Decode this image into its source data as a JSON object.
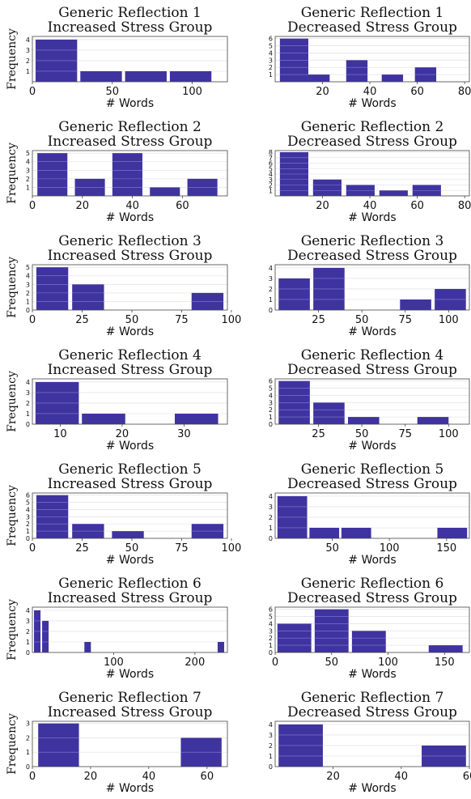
{
  "chart_data": [
    {
      "type": "bar",
      "title": "Generic Reflection 1\nIncreased Stress Group",
      "xlabel": "# Words",
      "ylabel": "Frequency",
      "xlim": [
        0,
        122
      ],
      "ylim": [
        0,
        4.3
      ],
      "xticks": [
        0,
        50,
        100
      ],
      "yticks": [
        1,
        2,
        3,
        4
      ],
      "bars": [
        {
          "x0": 2,
          "x1": 28,
          "value": 4
        },
        {
          "x0": 30,
          "x1": 56,
          "value": 1
        },
        {
          "x0": 58,
          "x1": 84,
          "value": 1
        },
        {
          "x0": 86,
          "x1": 112,
          "value": 1
        }
      ],
      "grid": true
    },
    {
      "type": "bar",
      "title": "Generic Reflection 1\nDecreased Stress Group",
      "xlabel": "# Words",
      "ylabel": "",
      "xlim": [
        0,
        82
      ],
      "ylim": [
        0,
        6.3
      ],
      "xticks": [
        20,
        40,
        60,
        80
      ],
      "yticks": [
        1,
        2,
        3,
        4,
        5,
        6
      ],
      "bars": [
        {
          "x0": 2,
          "x1": 14,
          "value": 6
        },
        {
          "x0": 14,
          "x1": 23,
          "value": 1
        },
        {
          "x0": 30,
          "x1": 39,
          "value": 3
        },
        {
          "x0": 45,
          "x1": 54,
          "value": 1
        },
        {
          "x0": 59,
          "x1": 68,
          "value": 2
        }
      ],
      "grid": true
    },
    {
      "type": "bar",
      "title": "Generic Reflection 2\nIncreased Stress Group",
      "xlabel": "# Words",
      "ylabel": "Frequency",
      "xlim": [
        0,
        78
      ],
      "ylim": [
        0,
        5.3
      ],
      "xticks": [
        0,
        20,
        40,
        60
      ],
      "yticks": [
        1,
        2,
        3,
        4,
        5
      ],
      "bars": [
        {
          "x0": 2,
          "x1": 14,
          "value": 5
        },
        {
          "x0": 17,
          "x1": 29,
          "value": 2
        },
        {
          "x0": 32,
          "x1": 44,
          "value": 5
        },
        {
          "x0": 47,
          "x1": 59,
          "value": 1
        },
        {
          "x0": 62,
          "x1": 74,
          "value": 2
        }
      ],
      "grid": true
    },
    {
      "type": "bar",
      "title": "Generic Reflection 2\nDecreased Stress Group",
      "xlabel": "# Words",
      "ylabel": "",
      "xlim": [
        0,
        82
      ],
      "ylim": [
        0,
        8.3
      ],
      "xticks": [
        20,
        40,
        60,
        80
      ],
      "yticks": [
        1,
        2,
        3,
        4,
        5,
        6,
        7,
        8
      ],
      "bars": [
        {
          "x0": 2,
          "x1": 14,
          "value": 8
        },
        {
          "x0": 16,
          "x1": 28,
          "value": 3
        },
        {
          "x0": 30,
          "x1": 42,
          "value": 2
        },
        {
          "x0": 44,
          "x1": 56,
          "value": 1
        },
        {
          "x0": 58,
          "x1": 70,
          "value": 2
        }
      ],
      "grid": true
    },
    {
      "type": "bar",
      "title": "Generic Reflection 3\nIncreased Stress Group",
      "xlabel": "# Words",
      "ylabel": "Frequency",
      "xlim": [
        0,
        98
      ],
      "ylim": [
        0,
        5.3
      ],
      "xticks": [
        0,
        25,
        50,
        75,
        100
      ],
      "yticks": [
        0,
        1,
        2,
        3,
        4,
        5
      ],
      "bars": [
        {
          "x0": 2,
          "x1": 18,
          "value": 5
        },
        {
          "x0": 20,
          "x1": 36,
          "value": 3
        },
        {
          "x0": 80,
          "x1": 96,
          "value": 2
        }
      ],
      "grid": true
    },
    {
      "type": "bar",
      "title": "Generic Reflection 3\nDecreased Stress Group",
      "xlabel": "# Words",
      "ylabel": "",
      "xlim": [
        0,
        112
      ],
      "ylim": [
        0,
        4.3
      ],
      "xticks": [
        25,
        50,
        75,
        100
      ],
      "yticks": [
        0,
        1,
        2,
        3,
        4
      ],
      "bars": [
        {
          "x0": 2,
          "x1": 20,
          "value": 3
        },
        {
          "x0": 22,
          "x1": 40,
          "value": 4
        },
        {
          "x0": 72,
          "x1": 90,
          "value": 1
        },
        {
          "x0": 92,
          "x1": 110,
          "value": 2
        }
      ],
      "grid": true
    },
    {
      "type": "bar",
      "title": "Generic Reflection 4\nIncreased Stress Group",
      "xlabel": "# Words",
      "ylabel": "Frequency",
      "xlim": [
        5.5,
        37
      ],
      "ylim": [
        0,
        4.3
      ],
      "xticks": [
        10,
        20,
        30
      ],
      "yticks": [
        0,
        1,
        2,
        3,
        4
      ],
      "bars": [
        {
          "x0": 6,
          "x1": 13,
          "value": 4
        },
        {
          "x0": 13.5,
          "x1": 20.5,
          "value": 1
        },
        {
          "x0": 28.5,
          "x1": 35.5,
          "value": 1
        }
      ],
      "grid": true
    },
    {
      "type": "bar",
      "title": "Generic Reflection 4\nDecreased Stress Group",
      "xlabel": "# Words",
      "ylabel": "",
      "xlim": [
        0,
        112
      ],
      "ylim": [
        0,
        6.3
      ],
      "xticks": [
        25,
        50,
        75,
        100
      ],
      "yticks": [
        0,
        1,
        2,
        3,
        4,
        5,
        6
      ],
      "bars": [
        {
          "x0": 2,
          "x1": 20,
          "value": 6
        },
        {
          "x0": 22,
          "x1": 40,
          "value": 3
        },
        {
          "x0": 42,
          "x1": 60,
          "value": 1
        },
        {
          "x0": 82,
          "x1": 100,
          "value": 1
        }
      ],
      "grid": true
    },
    {
      "type": "bar",
      "title": "Generic Reflection 5\nIncreased Stress Group",
      "xlabel": "# Words",
      "ylabel": "Frequency",
      "xlim": [
        0,
        98
      ],
      "ylim": [
        0,
        6.3
      ],
      "xticks": [
        0,
        25,
        50,
        75,
        100
      ],
      "yticks": [
        0,
        1,
        2,
        3,
        4,
        5,
        6
      ],
      "bars": [
        {
          "x0": 2,
          "x1": 18,
          "value": 6
        },
        {
          "x0": 20,
          "x1": 36,
          "value": 2
        },
        {
          "x0": 40,
          "x1": 56,
          "value": 1
        },
        {
          "x0": 80,
          "x1": 96,
          "value": 2
        }
      ],
      "grid": true
    },
    {
      "type": "bar",
      "title": "Generic Reflection 5\nDecreased Stress Group",
      "xlabel": "# Words",
      "ylabel": "",
      "xlim": [
        0,
        170
      ],
      "ylim": [
        0,
        4.3
      ],
      "xticks": [
        50,
        100,
        150
      ],
      "yticks": [
        0,
        1,
        2,
        3,
        4
      ],
      "bars": [
        {
          "x0": 2,
          "x1": 28,
          "value": 4
        },
        {
          "x0": 30,
          "x1": 56,
          "value": 1
        },
        {
          "x0": 58,
          "x1": 84,
          "value": 1
        },
        {
          "x0": 142,
          "x1": 168,
          "value": 1
        }
      ],
      "grid": true
    },
    {
      "type": "bar",
      "title": "Generic Reflection 6\nIncreased Stress Group",
      "xlabel": "# Words",
      "ylabel": "Frequency",
      "xlim": [
        0,
        240
      ],
      "ylim": [
        0,
        4.3
      ],
      "xticks": [
        100,
        200
      ],
      "yticks": [
        0,
        1,
        2,
        3,
        4
      ],
      "bars": [
        {
          "x0": 2,
          "x1": 10,
          "value": 4
        },
        {
          "x0": 12,
          "x1": 20,
          "value": 3
        },
        {
          "x0": 64,
          "x1": 72,
          "value": 1
        },
        {
          "x0": 228,
          "x1": 236,
          "value": 1
        }
      ],
      "grid": true
    },
    {
      "type": "bar",
      "title": "Generic Reflection 6\nDecreased Stress Group",
      "xlabel": "# Words",
      "ylabel": "",
      "xlim": [
        0,
        172
      ],
      "ylim": [
        0,
        6.3
      ],
      "xticks": [
        0,
        50,
        100,
        150
      ],
      "yticks": [
        0,
        1,
        2,
        3,
        4,
        5,
        6
      ],
      "bars": [
        {
          "x0": 2,
          "x1": 32,
          "value": 4
        },
        {
          "x0": 35,
          "x1": 65,
          "value": 6
        },
        {
          "x0": 68,
          "x1": 98,
          "value": 3
        },
        {
          "x0": 136,
          "x1": 166,
          "value": 1
        }
      ],
      "grid": true
    },
    {
      "type": "bar",
      "title": "Generic Reflection 7\nIncreased Stress Group",
      "xlabel": "# Words",
      "ylabel": "Frequency",
      "xlim": [
        0,
        67
      ],
      "ylim": [
        0,
        3.15
      ],
      "xticks": [
        0,
        20,
        40,
        60
      ],
      "yticks": [
        0,
        1,
        2,
        3
      ],
      "bars": [
        {
          "x0": 2,
          "x1": 16,
          "value": 3
        },
        {
          "x0": 51,
          "x1": 65,
          "value": 2
        }
      ],
      "grid": true
    },
    {
      "type": "bar",
      "title": "Generic Reflection 7\nDecreased Stress Group",
      "xlabel": "# Words",
      "ylabel": "",
      "xlim": [
        3,
        60
      ],
      "ylim": [
        0,
        4.3
      ],
      "xticks": [
        20,
        40,
        60
      ],
      "yticks": [
        0,
        1,
        2,
        3,
        4
      ],
      "bars": [
        {
          "x0": 4,
          "x1": 17,
          "value": 4
        },
        {
          "x0": 46,
          "x1": 59,
          "value": 2
        }
      ],
      "grid": true
    }
  ],
  "colors": {
    "bar": "#3f33a0",
    "bar_line": "#a79fe0",
    "grid": "#e6e6e6",
    "frame": "#444444"
  }
}
